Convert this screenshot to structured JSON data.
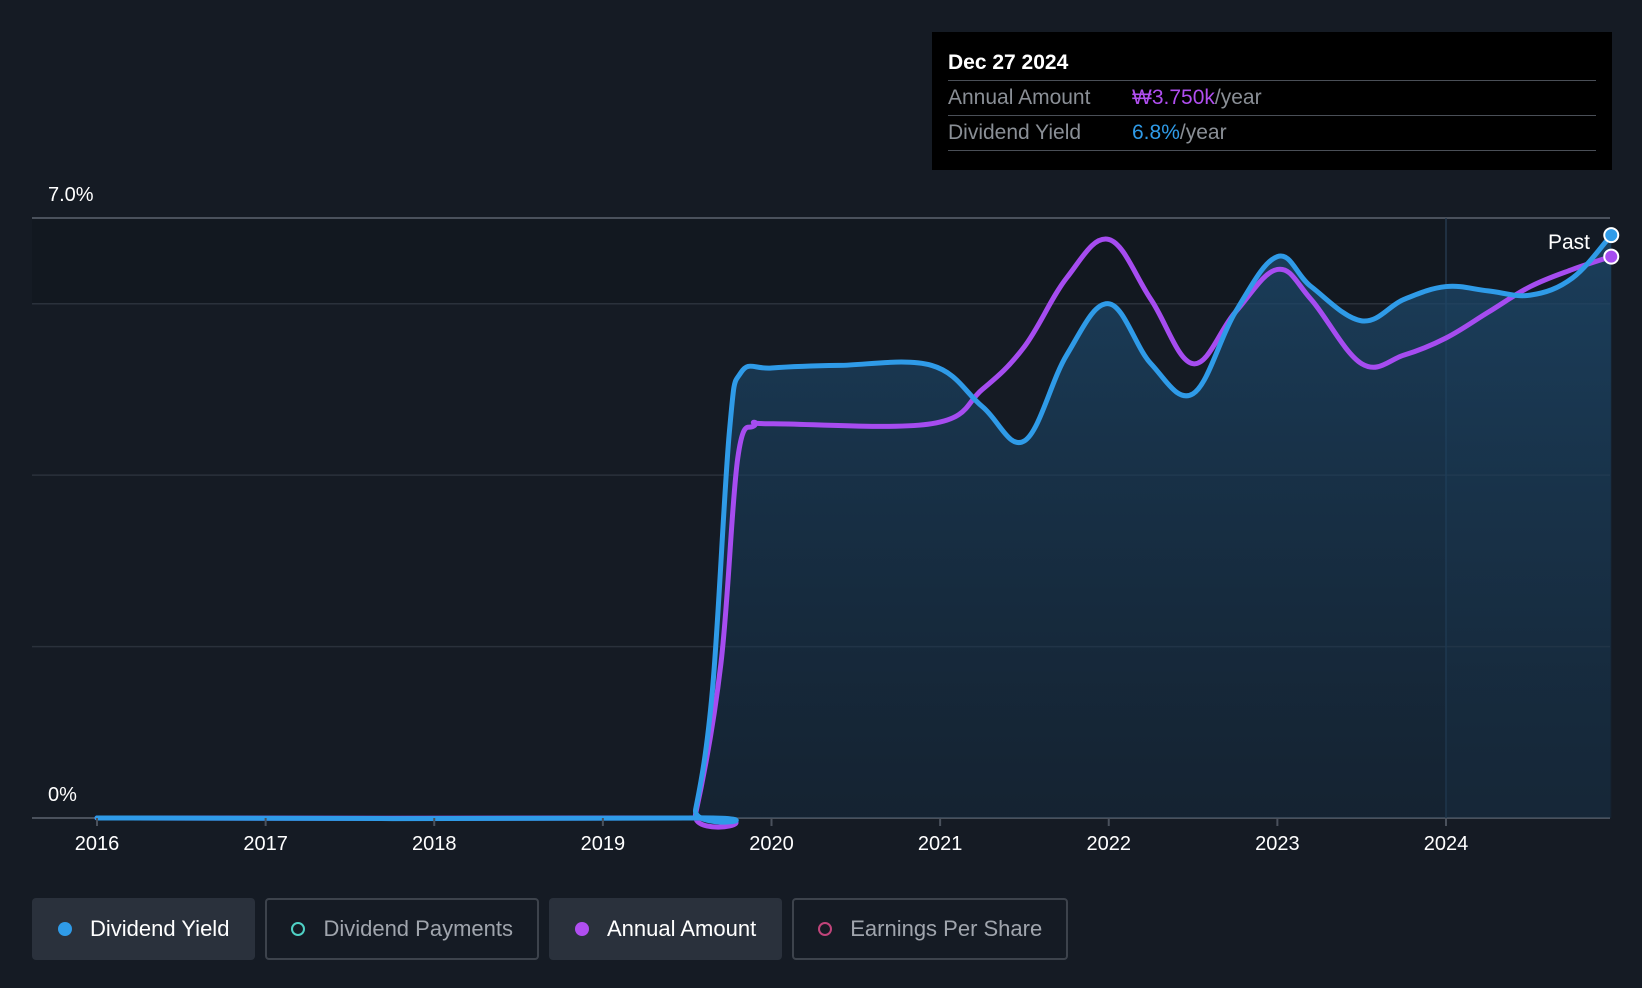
{
  "tooltip": {
    "date": "Dec 27 2024",
    "annual_amount_label": "Annual Amount",
    "annual_amount_value": "₩3.750k",
    "annual_amount_unit": "/year",
    "dividend_yield_label": "Dividend Yield",
    "dividend_yield_value": "6.8%",
    "dividend_yield_unit": "/year"
  },
  "legend": [
    {
      "label": "Dividend Yield",
      "active": true,
      "color": "#2f9be8"
    },
    {
      "label": "Dividend Payments",
      "active": false,
      "color": "#4fd1c5"
    },
    {
      "label": "Annual Amount",
      "active": true,
      "color": "#b04ef0"
    },
    {
      "label": "Earnings Per Share",
      "active": false,
      "color": "#c0447a"
    }
  ],
  "colors": {
    "yield": "#2f9be8",
    "annual": "#a64cf0",
    "background": "#151b24",
    "grid": "#2a313b"
  },
  "chart_data": {
    "type": "line",
    "ytick_top": "7.0%",
    "ytick_bottom": "0%",
    "ylim": [
      0,
      7.0
    ],
    "xlim": [
      2015.6,
      2025.0
    ],
    "xticks": [
      "2016",
      "2017",
      "2018",
      "2019",
      "2020",
      "2021",
      "2022",
      "2023",
      "2024"
    ],
    "past_label": "Past",
    "past_start": 2024.0,
    "series": [
      {
        "name": "Dividend Yield",
        "type": "area",
        "points": [
          [
            2016.0,
            0
          ],
          [
            2019.5,
            0
          ],
          [
            2019.55,
            0.1
          ],
          [
            2019.65,
            1.5
          ],
          [
            2019.75,
            4.5
          ],
          [
            2019.82,
            5.2
          ],
          [
            2020.0,
            5.25
          ],
          [
            2020.4,
            5.28
          ],
          [
            2020.95,
            5.28
          ],
          [
            2021.25,
            4.8
          ],
          [
            2021.5,
            4.4
          ],
          [
            2021.75,
            5.4
          ],
          [
            2022.0,
            6.0
          ],
          [
            2022.25,
            5.3
          ],
          [
            2022.5,
            4.95
          ],
          [
            2022.75,
            5.9
          ],
          [
            2023.0,
            6.55
          ],
          [
            2023.2,
            6.2
          ],
          [
            2023.5,
            5.8
          ],
          [
            2023.75,
            6.05
          ],
          [
            2024.0,
            6.2
          ],
          [
            2024.25,
            6.15
          ],
          [
            2024.5,
            6.1
          ],
          [
            2024.75,
            6.3
          ],
          [
            2024.98,
            6.8
          ]
        ]
      },
      {
        "name": "Annual Amount",
        "type": "line",
        "points": [
          [
            2016.0,
            0
          ],
          [
            2019.5,
            0
          ],
          [
            2019.55,
            0.05
          ],
          [
            2019.7,
            1.8
          ],
          [
            2019.8,
            4.2
          ],
          [
            2019.9,
            4.58
          ],
          [
            2020.0,
            4.6
          ],
          [
            2020.95,
            4.6
          ],
          [
            2021.25,
            5.0
          ],
          [
            2021.5,
            5.5
          ],
          [
            2021.75,
            6.3
          ],
          [
            2022.0,
            6.75
          ],
          [
            2022.25,
            6.05
          ],
          [
            2022.5,
            5.3
          ],
          [
            2022.75,
            5.9
          ],
          [
            2023.0,
            6.4
          ],
          [
            2023.2,
            6.05
          ],
          [
            2023.5,
            5.3
          ],
          [
            2023.75,
            5.4
          ],
          [
            2024.0,
            5.6
          ],
          [
            2024.25,
            5.9
          ],
          [
            2024.5,
            6.2
          ],
          [
            2024.75,
            6.4
          ],
          [
            2024.98,
            6.55
          ]
        ]
      }
    ]
  }
}
